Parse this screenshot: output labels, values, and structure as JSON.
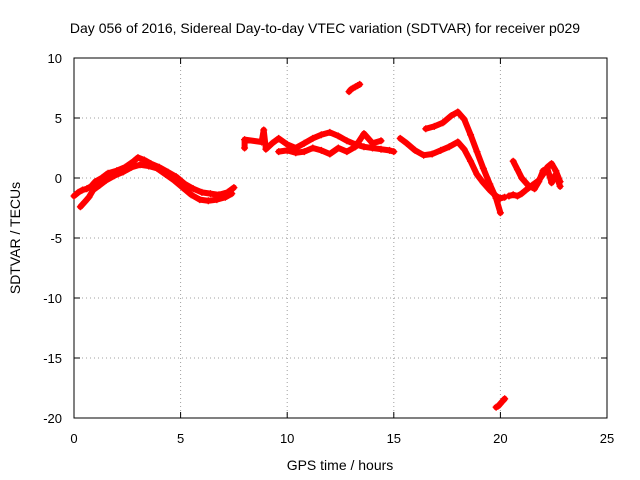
{
  "chart_data": {
    "type": "scatter",
    "title": "Day 056 of 2016, Sidereal Day-to-day VTEC variation (SDTVAR) for receiver p029",
    "xlabel": "GPS time / hours",
    "ylabel": "SDTVAR / TECUs",
    "xlim": [
      0,
      25
    ],
    "ylim": [
      -20,
      10
    ],
    "xticks": [
      0,
      5,
      10,
      15,
      20,
      25
    ],
    "yticks": [
      -20,
      -15,
      -10,
      -5,
      0,
      5,
      10
    ],
    "xtick_labels": [
      "0",
      "5",
      "10",
      "15",
      "20",
      "25"
    ],
    "ytick_labels": [
      "-20",
      "-15",
      "-10",
      "-5",
      "0",
      "5",
      "10"
    ],
    "grid": true,
    "marker": "+",
    "color": "#ff0000",
    "series": [
      {
        "name": "arc-1",
        "x": [
          0.0,
          0.2,
          0.4,
          0.6,
          0.8,
          1.0,
          1.3,
          1.6,
          2.0,
          2.4,
          2.8,
          3.0,
          3.3,
          3.6,
          4.0,
          4.4,
          4.8,
          5.2,
          5.6,
          6.0,
          6.4,
          6.8,
          7.2,
          7.5
        ],
        "y": [
          -1.5,
          -1.2,
          -1.0,
          -0.9,
          -0.7,
          -0.3,
          0.0,
          0.4,
          0.6,
          0.9,
          1.4,
          1.7,
          1.5,
          1.2,
          0.9,
          0.5,
          0.1,
          -0.5,
          -0.9,
          -1.2,
          -1.3,
          -1.4,
          -1.2,
          -0.8
        ]
      },
      {
        "name": "arc-1b",
        "x": [
          0.3,
          0.5,
          0.7,
          0.9,
          1.2,
          1.5,
          1.9,
          2.3,
          2.7,
          3.1,
          3.5,
          3.9,
          4.3,
          4.7,
          5.1,
          5.5,
          5.9,
          6.3,
          6.7,
          7.1,
          7.4
        ],
        "y": [
          -2.4,
          -2.0,
          -1.6,
          -1.0,
          -0.6,
          -0.2,
          0.2,
          0.5,
          0.9,
          1.1,
          1.0,
          0.8,
          0.3,
          -0.2,
          -0.8,
          -1.4,
          -1.8,
          -1.9,
          -1.8,
          -1.6,
          -1.3
        ]
      },
      {
        "name": "arc-2",
        "x": [
          8.0,
          8.0,
          8.8,
          8.9,
          9.0,
          9.3,
          9.6,
          10.0,
          10.4,
          10.8,
          11.2,
          11.6,
          12.0,
          12.4,
          12.8,
          13.2,
          13.6,
          14.0,
          14.4,
          14.8,
          15.0
        ],
        "y": [
          2.5,
          3.2,
          3.0,
          4.0,
          2.4,
          2.9,
          3.3,
          2.8,
          2.5,
          2.9,
          3.3,
          3.6,
          3.8,
          3.5,
          3.1,
          2.8,
          2.6,
          2.5,
          2.4,
          2.3,
          2.2
        ]
      },
      {
        "name": "arc-2b",
        "x": [
          9.6,
          10.0,
          10.4,
          10.8,
          11.2,
          11.6,
          12.0,
          12.4,
          12.8,
          13.2,
          13.6,
          14.0,
          14.4
        ],
        "y": [
          2.2,
          2.3,
          2.1,
          2.2,
          2.5,
          2.3,
          2.0,
          2.5,
          2.2,
          2.6,
          3.7,
          2.9,
          3.1
        ]
      },
      {
        "name": "arc-3",
        "x": [
          15.3,
          15.6,
          16.0,
          16.4,
          16.8,
          17.2,
          17.6,
          18.0,
          18.3,
          18.6,
          18.9,
          19.2,
          19.5,
          19.8,
          20.0,
          20.2
        ],
        "y": [
          3.3,
          2.9,
          2.3,
          1.9,
          2.0,
          2.3,
          2.6,
          3.0,
          2.4,
          1.4,
          0.3,
          -0.4,
          -1.0,
          -1.5,
          -1.7,
          -1.6
        ]
      },
      {
        "name": "arc-3b",
        "x": [
          16.5,
          16.9,
          17.3,
          17.7,
          18.0,
          18.3,
          18.6,
          18.9,
          19.2,
          19.5,
          19.8,
          20.0
        ],
        "y": [
          4.1,
          4.3,
          4.6,
          5.2,
          5.5,
          4.9,
          3.6,
          2.2,
          0.8,
          -0.5,
          -1.7,
          -2.9
        ]
      },
      {
        "name": "arc-4",
        "x": [
          20.4,
          20.6,
          20.8,
          21.0,
          21.2,
          21.5,
          21.8,
          22.0,
          22.2,
          22.4,
          22.6,
          22.8
        ],
        "y": [
          -1.5,
          -1.4,
          -1.5,
          -1.3,
          -1.0,
          -0.6,
          -0.2,
          0.3,
          0.9,
          1.2,
          0.6,
          -0.3
        ]
      },
      {
        "name": "arc-4b",
        "x": [
          20.6,
          20.8,
          21.0,
          21.3,
          21.6,
          21.8,
          22.0,
          22.2,
          22.4,
          22.6,
          22.8
        ],
        "y": [
          1.4,
          0.7,
          0.0,
          -0.6,
          -0.9,
          -0.3,
          0.6,
          0.8,
          -0.4,
          0.3,
          -0.7
        ]
      },
      {
        "name": "isolated-upper",
        "x": [
          12.9,
          13.0,
          13.1,
          13.2,
          13.3,
          13.4
        ],
        "y": [
          7.2,
          7.4,
          7.5,
          7.6,
          7.7,
          7.8
        ]
      },
      {
        "name": "isolated-lower",
        "x": [
          19.8,
          19.9,
          20.0,
          20.1,
          20.2
        ],
        "y": [
          -19.1,
          -19.0,
          -18.8,
          -18.6,
          -18.4
        ]
      }
    ]
  }
}
